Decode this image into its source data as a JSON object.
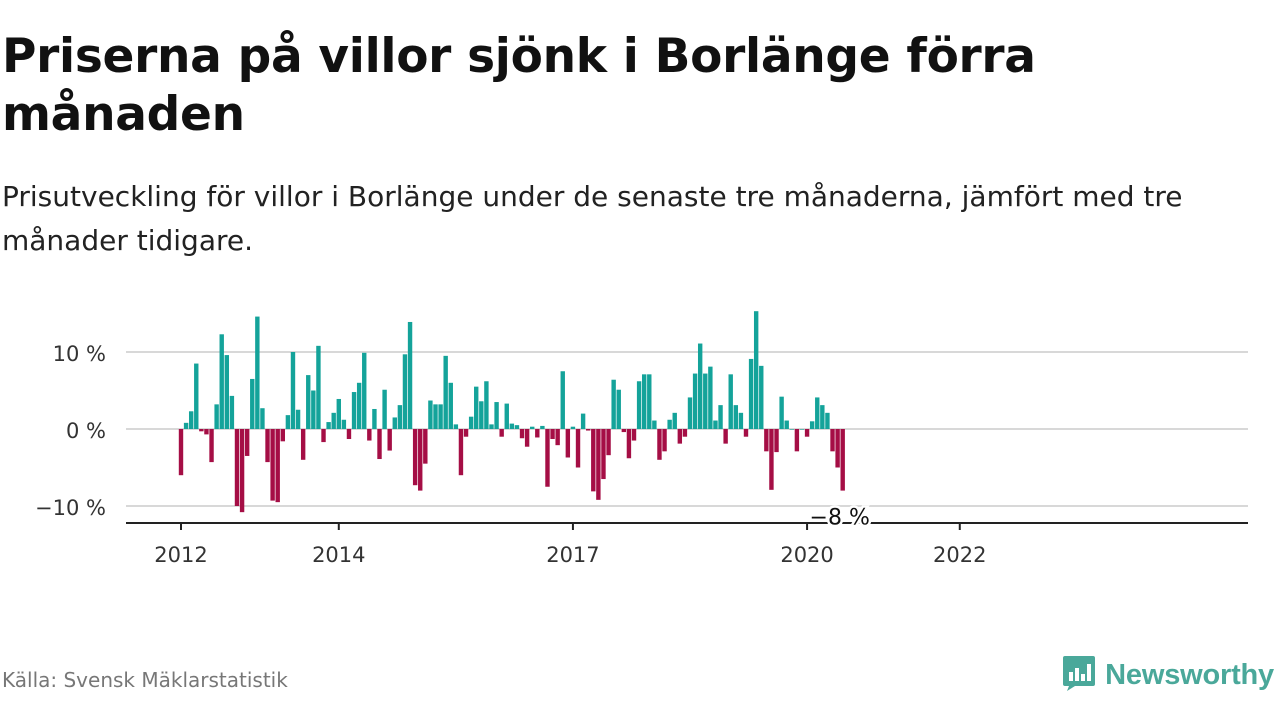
{
  "title": "Priserna på villor sjönk i Borlänge förra månaden",
  "subtitle": "Prisutveckling för villor i Borlänge under de senaste tre månaderna, jämfört med tre månader tidigare.",
  "source": "Källa: Svensk Mäklarstatistik",
  "brand": "Newsworthy",
  "colors": {
    "positive": "#14a39a",
    "negative": "#a50e45",
    "grid": "#d8d8d8",
    "axis": "#222222"
  },
  "chart_data": {
    "type": "bar",
    "ylim": [
      -12,
      16
    ],
    "yticks": [
      {
        "value": 10,
        "label": "10 %"
      },
      {
        "value": 0,
        "label": "0 %"
      },
      {
        "value": -10,
        "label": "−10 %"
      }
    ],
    "xticks": [
      {
        "index": 0,
        "label": "2012"
      },
      {
        "index": 31,
        "label": "2014"
      },
      {
        "index": 77,
        "label": "2017"
      },
      {
        "index": 123,
        "label": "2020"
      },
      {
        "index": 153,
        "label": "2022"
      }
    ],
    "last_label": "−8 %",
    "values": [
      -6,
      0.8,
      2.3,
      8.5,
      -0.3,
      -0.7,
      -4.3,
      3.2,
      12.3,
      9.6,
      4.3,
      -10,
      -10.8,
      -3.5,
      6.5,
      14.6,
      2.7,
      -4.3,
      -9.3,
      -9.5,
      -1.6,
      1.8,
      10,
      2.5,
      -4,
      7,
      5,
      10.8,
      -1.7,
      0.9,
      2.1,
      3.9,
      1.2,
      -1.3,
      4.8,
      6,
      9.9,
      -1.5,
      2.6,
      -3.9,
      5.1,
      -2.8,
      1.5,
      3.1,
      9.7,
      13.9,
      -7.3,
      -8,
      -4.5,
      3.7,
      3.2,
      3.2,
      9.5,
      6,
      0.6,
      -6,
      -1,
      1.6,
      5.5,
      3.6,
      6.2,
      0.6,
      3.5,
      -1,
      3.3,
      0.7,
      0.5,
      -1.2,
      -2.3,
      0.3,
      -1.1,
      0.4,
      -7.5,
      -1.3,
      -2.1,
      7.5,
      -3.7,
      0.3,
      -5,
      2,
      -0.2,
      -8.1,
      -9.2,
      -6.5,
      -3.4,
      6.4,
      5.1,
      -0.4,
      -3.8,
      -1.5,
      6.2,
      7.1,
      7.1,
      1.1,
      -4,
      -2.9,
      1.2,
      2.1,
      -1.9,
      -1,
      4.1,
      7.2,
      11.1,
      7.2,
      8.1,
      1.1,
      3.1,
      -1.9,
      7.1,
      3.1,
      2.1,
      -1,
      9.1,
      15.3,
      8.2,
      -2.9,
      -7.9,
      -3,
      4.2,
      1.1,
      0,
      -2.9,
      0,
      -1,
      1,
      4.1,
      3.1,
      2.1,
      -2.9,
      -5,
      -8
    ]
  }
}
